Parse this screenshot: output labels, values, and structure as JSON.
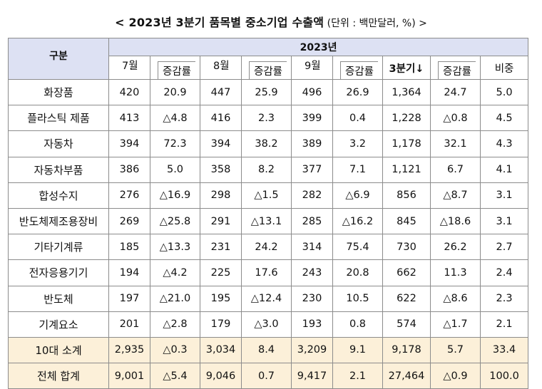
{
  "title": {
    "main": "< 2023년  3분기  품목별  중소기업  수출액",
    "unit": " (단위 : 백만달러, %) >"
  },
  "table": {
    "corner_label": "구분",
    "year_label": "2023년",
    "sub_headers": [
      "7월",
      "증감률",
      "8월",
      "증감률",
      "9월",
      "증감률",
      "3분기↓",
      "증감률",
      "비중"
    ],
    "rows": [
      {
        "category": "화장품",
        "values": [
          "420",
          "20.9",
          "447",
          "25.9",
          "496",
          "26.9",
          "1,364",
          "24.7",
          "5.0"
        ]
      },
      {
        "category": "플라스틱 제품",
        "values": [
          "413",
          "△4.8",
          "416",
          "2.3",
          "399",
          "0.4",
          "1,228",
          "△0.8",
          "4.5"
        ]
      },
      {
        "category": "자동차",
        "values": [
          "394",
          "72.3",
          "394",
          "38.2",
          "389",
          "3.2",
          "1,178",
          "32.1",
          "4.3"
        ]
      },
      {
        "category": "자동차부품",
        "values": [
          "386",
          "5.0",
          "358",
          "8.2",
          "377",
          "7.1",
          "1,121",
          "6.7",
          "4.1"
        ]
      },
      {
        "category": "합성수지",
        "values": [
          "276",
          "△16.9",
          "298",
          "△1.5",
          "282",
          "△6.9",
          "856",
          "△8.7",
          "3.1"
        ]
      },
      {
        "category": "반도체제조용장비",
        "values": [
          "269",
          "△25.8",
          "291",
          "△13.1",
          "285",
          "△16.2",
          "845",
          "△18.6",
          "3.1"
        ]
      },
      {
        "category": "기타기계류",
        "values": [
          "185",
          "△13.3",
          "231",
          "24.2",
          "314",
          "75.4",
          "730",
          "26.2",
          "2.7"
        ]
      },
      {
        "category": "전자응용기기",
        "values": [
          "194",
          "△4.2",
          "225",
          "17.6",
          "243",
          "20.8",
          "662",
          "11.3",
          "2.4"
        ]
      },
      {
        "category": "반도체",
        "values": [
          "197",
          "△21.0",
          "195",
          "△12.4",
          "230",
          "10.5",
          "622",
          "△8.6",
          "2.3"
        ]
      },
      {
        "category": "기계요소",
        "values": [
          "201",
          "△2.8",
          "179",
          "△3.0",
          "193",
          "0.8",
          "574",
          "△1.7",
          "2.1"
        ]
      }
    ],
    "summary_rows": [
      {
        "category": "10대 소계",
        "values": [
          "2,935",
          "△0.3",
          "3,034",
          "8.4",
          "3,209",
          "9.1",
          "9,178",
          "5.7",
          "33.4"
        ]
      },
      {
        "category": "전체 합계",
        "values": [
          "9,001",
          "△5.4",
          "9,046",
          "0.7",
          "9,417",
          "2.1",
          "27,464",
          "△0.9",
          "100.0"
        ]
      }
    ],
    "colors": {
      "header_fill": "#dde1f3",
      "summary_fill": "#fcf0d9",
      "grid": "#8c8c8c"
    }
  }
}
